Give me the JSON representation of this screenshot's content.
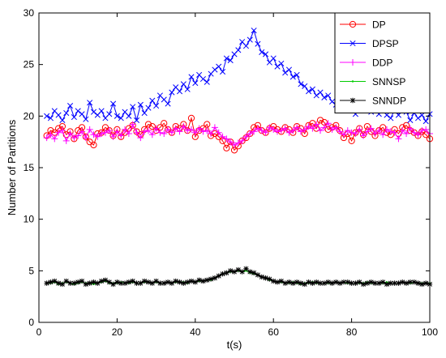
{
  "chart_data": {
    "type": "line",
    "title": "",
    "xlabel": "t(s)",
    "ylabel": "Number of Partitions",
    "xlim": [
      0,
      100
    ],
    "ylim": [
      0,
      30
    ],
    "xticks": [
      0,
      20,
      40,
      60,
      80,
      100
    ],
    "yticks": [
      0,
      5,
      10,
      15,
      20,
      25,
      30
    ],
    "grid": false,
    "legend_position": "top-right",
    "x": [
      2,
      3,
      4,
      5,
      6,
      7,
      8,
      9,
      10,
      11,
      12,
      13,
      14,
      15,
      16,
      17,
      18,
      19,
      20,
      21,
      22,
      23,
      24,
      25,
      26,
      27,
      28,
      29,
      30,
      31,
      32,
      33,
      34,
      35,
      36,
      37,
      38,
      39,
      40,
      41,
      42,
      43,
      44,
      45,
      46,
      47,
      48,
      49,
      50,
      51,
      52,
      53,
      54,
      55,
      56,
      57,
      58,
      59,
      60,
      61,
      62,
      63,
      64,
      65,
      66,
      67,
      68,
      69,
      70,
      71,
      72,
      73,
      74,
      75,
      76,
      77,
      78,
      79,
      80,
      81,
      82,
      83,
      84,
      85,
      86,
      87,
      88,
      89,
      90,
      91,
      92,
      93,
      94,
      95,
      96,
      97,
      98,
      99,
      100
    ],
    "series": [
      {
        "name": "DP",
        "color": "#ff0000",
        "marker": "circle",
        "values": [
          18.1,
          18.6,
          18.4,
          18.8,
          19.0,
          18.2,
          18.5,
          17.8,
          18.6,
          18.9,
          18.0,
          17.5,
          17.2,
          18.3,
          18.4,
          18.9,
          18.6,
          18.1,
          18.7,
          18.0,
          18.4,
          18.8,
          19.1,
          18.5,
          18.2,
          18.7,
          19.2,
          19.0,
          18.6,
          18.9,
          19.3,
          18.7,
          18.4,
          19.0,
          18.8,
          19.2,
          18.6,
          19.8,
          18.0,
          18.6,
          18.8,
          19.2,
          18.1,
          18.3,
          18.0,
          17.6,
          16.9,
          17.5,
          16.7,
          17.1,
          17.6,
          17.9,
          18.3,
          18.9,
          19.1,
          18.6,
          18.4,
          18.8,
          19.0,
          18.7,
          18.5,
          18.9,
          18.7,
          18.4,
          19.0,
          18.8,
          18.3,
          19.1,
          19.3,
          18.8,
          19.6,
          19.4,
          18.7,
          18.9,
          19.1,
          18.6,
          17.9,
          18.3,
          17.6,
          18.4,
          18.8,
          18.2,
          19.0,
          18.5,
          18.1,
          18.6,
          18.9,
          18.4,
          18.2,
          18.7,
          18.3,
          18.9,
          19.1,
          18.6,
          18.4,
          18.1,
          18.5,
          18.2,
          17.8
        ]
      },
      {
        "name": "DPSP",
        "color": "#0000ff",
        "marker": "x",
        "values": [
          20.0,
          19.8,
          20.5,
          20.1,
          19.6,
          20.3,
          21.0,
          19.9,
          20.5,
          20.2,
          19.7,
          21.3,
          20.4,
          20.1,
          20.5,
          19.8,
          20.2,
          21.2,
          20.0,
          19.8,
          20.4,
          20.0,
          20.9,
          19.6,
          21.1,
          20.3,
          20.8,
          21.5,
          21.0,
          22.0,
          21.6,
          21.2,
          22.3,
          22.8,
          22.4,
          23.1,
          22.6,
          23.8,
          23.2,
          24.0,
          23.6,
          23.3,
          24.1,
          24.5,
          24.8,
          24.3,
          25.6,
          25.4,
          26.0,
          26.4,
          27.2,
          26.8,
          27.4,
          28.3,
          27.0,
          26.2,
          26.0,
          25.2,
          25.6,
          24.8,
          25.1,
          24.2,
          24.5,
          23.8,
          24.0,
          23.1,
          22.9,
          22.4,
          22.6,
          22.0,
          22.3,
          21.8,
          22.0,
          21.4,
          21.1,
          21.7,
          21.0,
          21.4,
          20.6,
          20.2,
          21.6,
          20.8,
          21.1,
          20.4,
          20.8,
          20.2,
          20.6,
          20.1,
          19.8,
          20.6,
          20.1,
          21.0,
          20.4,
          19.6,
          20.3,
          19.8,
          20.1,
          19.5,
          20.2
        ]
      },
      {
        "name": "DDP",
        "color": "#ff00ff",
        "marker": "plus",
        "values": [
          17.9,
          18.2,
          17.8,
          18.4,
          18.6,
          17.6,
          18.3,
          17.9,
          18.1,
          18.5,
          17.9,
          18.7,
          18.2,
          18.0,
          18.3,
          18.4,
          18.6,
          18.0,
          18.5,
          18.1,
          18.7,
          18.3,
          19.2,
          18.4,
          17.9,
          18.5,
          18.6,
          18.2,
          18.8,
          18.4,
          18.3,
          18.7,
          18.4,
          18.8,
          18.5,
          19.0,
          18.6,
          18.7,
          18.4,
          18.8,
          18.5,
          18.6,
          18.3,
          18.9,
          18.4,
          18.0,
          17.8,
          17.5,
          17.2,
          17.4,
          17.6,
          18.0,
          18.3,
          18.5,
          18.8,
          18.6,
          18.4,
          18.9,
          18.7,
          18.5,
          18.6,
          18.8,
          18.4,
          18.6,
          18.9,
          18.5,
          18.7,
          19.0,
          18.8,
          19.2,
          18.6,
          18.9,
          19.3,
          18.7,
          18.9,
          18.5,
          18.2,
          18.6,
          18.4,
          18.3,
          18.7,
          18.1,
          18.5,
          18.8,
          18.3,
          18.6,
          18.2,
          18.7,
          18.5,
          18.4,
          17.8,
          18.6,
          18.3,
          18.8,
          18.4,
          18.2,
          18.6,
          18.7,
          18.3
        ]
      },
      {
        "name": "SNNSP",
        "color": "#00cc00",
        "marker": "dot",
        "values": [
          3.8,
          3.8,
          3.9,
          3.7,
          3.8,
          3.9,
          3.8,
          3.7,
          3.8,
          3.9,
          3.8,
          3.8,
          3.7,
          3.8,
          3.9,
          4.0,
          3.8,
          3.8,
          3.8,
          3.9,
          3.8,
          3.8,
          3.9,
          3.8,
          3.8,
          3.9,
          3.9,
          3.8,
          3.9,
          3.8,
          3.8,
          3.9,
          3.8,
          3.9,
          3.9,
          3.9,
          3.8,
          4.0,
          3.9,
          4.0,
          4.0,
          4.1,
          4.1,
          4.3,
          4.5,
          4.7,
          4.8,
          4.9,
          4.9,
          5.0,
          4.9,
          5.0,
          4.8,
          4.7,
          4.6,
          4.4,
          4.3,
          4.1,
          4.0,
          3.9,
          3.9,
          3.8,
          3.8,
          3.9,
          3.8,
          3.7,
          3.8,
          3.8,
          3.9,
          3.8,
          3.8,
          3.8,
          3.8,
          3.8,
          3.9,
          3.8,
          3.9,
          3.8,
          3.8,
          3.8,
          3.8,
          3.8,
          3.9,
          3.8,
          3.8,
          3.8,
          3.8,
          3.9,
          3.8,
          3.8,
          3.8,
          3.9,
          3.8,
          3.8,
          3.9,
          3.8,
          3.8,
          3.8,
          3.8
        ]
      },
      {
        "name": "SNNDP",
        "color": "#000000",
        "marker": "star",
        "values": [
          3.8,
          3.9,
          4.0,
          3.8,
          3.7,
          4.0,
          3.8,
          3.8,
          3.9,
          4.0,
          3.7,
          3.8,
          3.9,
          3.8,
          4.0,
          4.1,
          3.9,
          3.7,
          3.9,
          3.8,
          3.8,
          3.9,
          4.0,
          3.8,
          3.8,
          4.0,
          3.9,
          3.8,
          4.0,
          3.8,
          3.8,
          3.9,
          3.8,
          4.0,
          3.9,
          3.8,
          3.9,
          4.0,
          3.9,
          4.1,
          4.0,
          4.1,
          4.2,
          4.3,
          4.5,
          4.7,
          4.8,
          5.0,
          4.9,
          5.1,
          4.9,
          5.2,
          4.9,
          4.8,
          4.6,
          4.4,
          4.3,
          4.2,
          4.0,
          3.9,
          4.0,
          3.8,
          3.9,
          3.8,
          3.9,
          3.8,
          3.7,
          3.9,
          3.8,
          3.9,
          3.8,
          3.8,
          3.9,
          3.8,
          3.9,
          3.8,
          3.9,
          3.9,
          3.8,
          3.8,
          3.9,
          3.7,
          3.8,
          3.9,
          3.8,
          3.8,
          3.9,
          3.7,
          3.8,
          3.8,
          3.8,
          3.9,
          3.8,
          3.9,
          3.9,
          3.8,
          3.7,
          3.8,
          3.7
        ]
      }
    ]
  }
}
